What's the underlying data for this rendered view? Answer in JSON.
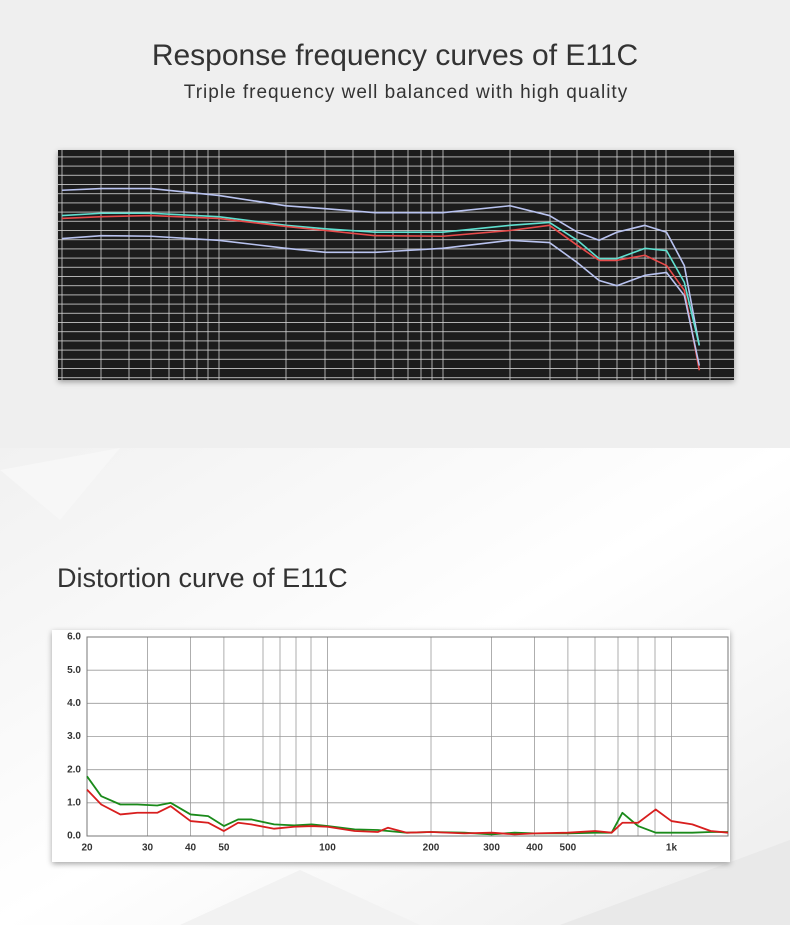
{
  "chart_data": [
    {
      "type": "line",
      "title": "Response frequency curves of E11C",
      "subtitle": "Triple frequency well balanced with high quality",
      "xlog": true,
      "xlim": [
        20,
        20000
      ],
      "ylim": [
        -26,
        14
      ],
      "x": [
        20,
        30,
        50,
        100,
        200,
        300,
        500,
        1000,
        2000,
        3000,
        4000,
        5000,
        6000,
        8000,
        10000,
        12000,
        14000
      ],
      "series": [
        {
          "color": "#b9c3f0",
          "values": [
            7.0,
            7.3,
            7.3,
            6.1,
            4.3,
            3.8,
            3.1,
            3.1,
            4.3,
            2.6,
            -0.3,
            -1.7,
            -0.3,
            0.9,
            -0.3,
            -6.1,
            -20.0
          ]
        },
        {
          "color": "#5fe0d0",
          "values": [
            2.6,
            3.0,
            3.0,
            2.4,
            0.9,
            0.3,
            -0.3,
            -0.3,
            0.9,
            1.4,
            -1.7,
            -4.9,
            -4.9,
            -3.1,
            -3.5,
            -9.0,
            -20.0
          ]
        },
        {
          "color": "#e84a4a",
          "values": [
            2.1,
            2.4,
            2.6,
            2.1,
            0.7,
            0,
            -0.9,
            -1.0,
            0,
            0.9,
            -2.6,
            -5.2,
            -5.2,
            -4.3,
            -6.1,
            -10.4,
            -24.3
          ]
        },
        {
          "color": "#b9c3f0",
          "values": [
            -1.4,
            -0.9,
            -1.0,
            -1.7,
            -3.1,
            -3.8,
            -3.8,
            -3.1,
            -1.7,
            -2.1,
            -5.6,
            -8.7,
            -9.6,
            -7.8,
            -7.3,
            -11.3,
            -23.5
          ]
        }
      ]
    },
    {
      "type": "line",
      "title": "Distortion curve of E11C",
      "xlog": true,
      "xlim": [
        20,
        1460
      ],
      "ylim": [
        0,
        6
      ],
      "xticks": [
        20,
        30,
        40,
        50,
        100,
        200,
        300,
        400,
        500,
        {
          "value": 1000,
          "label": "1k"
        }
      ],
      "yticks": [
        {
          "value": 0,
          "label": "0.0"
        },
        {
          "value": 1,
          "label": "1.0"
        },
        {
          "value": 2,
          "label": "2.0"
        },
        {
          "value": 3,
          "label": "3.0"
        },
        {
          "value": 4,
          "label": "4.0"
        },
        {
          "value": 5,
          "label": "5.0"
        },
        {
          "value": 6,
          "label": "6.0"
        }
      ],
      "grid": true,
      "x": [
        20,
        22,
        25,
        28,
        32,
        35,
        40,
        45,
        50,
        55,
        60,
        70,
        80,
        90,
        100,
        120,
        140,
        150,
        170,
        200,
        250,
        300,
        350,
        400,
        500,
        600,
        670,
        720,
        800,
        900,
        1000,
        1150,
        1300,
        1460
      ],
      "series": [
        {
          "color": "#1a8a1a",
          "values": [
            1.8,
            1.2,
            0.95,
            0.95,
            0.92,
            1.0,
            0.65,
            0.6,
            0.3,
            0.5,
            0.5,
            0.35,
            0.32,
            0.35,
            0.3,
            0.2,
            0.18,
            0.15,
            0.1,
            0.12,
            0.1,
            0.05,
            0.1,
            0.08,
            0.08,
            0.1,
            0.1,
            0.7,
            0.3,
            0.1,
            0.1,
            0.1,
            0.12,
            0.12
          ]
        },
        {
          "color": "#d81e1e",
          "values": [
            1.4,
            0.95,
            0.65,
            0.7,
            0.7,
            0.9,
            0.45,
            0.4,
            0.15,
            0.4,
            0.35,
            0.22,
            0.28,
            0.3,
            0.28,
            0.15,
            0.12,
            0.25,
            0.1,
            0.12,
            0.08,
            0.1,
            0.05,
            0.08,
            0.1,
            0.15,
            0.1,
            0.4,
            0.4,
            0.8,
            0.45,
            0.35,
            0.15,
            0.1
          ]
        }
      ]
    }
  ]
}
